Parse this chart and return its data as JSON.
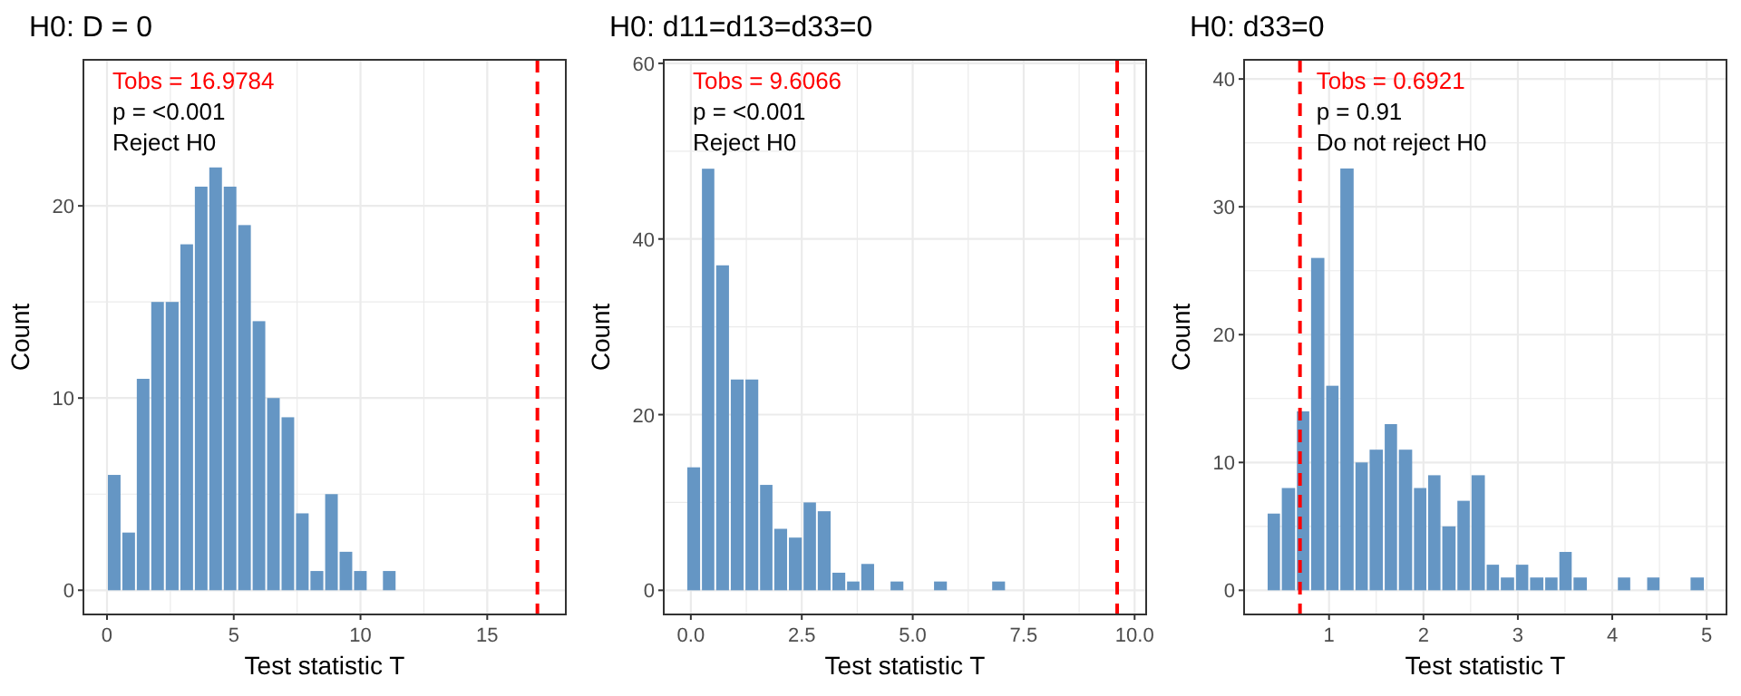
{
  "chart_data": [
    {
      "type": "histogram",
      "title": "H0: D = 0",
      "xlabel": "Test statistic T",
      "ylabel": "Count",
      "color": "#6596c4",
      "bins": [
        0,
        0.57,
        1.14,
        1.71,
        2.28,
        2.86,
        3.43,
        4.0,
        4.57,
        5.14,
        5.71,
        6.28,
        6.85,
        7.42,
        7.99,
        8.57,
        9.14,
        9.71,
        10.28,
        10.85,
        11.42
      ],
      "values": [
        6,
        3,
        11,
        15,
        15,
        18,
        21,
        22,
        21,
        19,
        14,
        10,
        9,
        4,
        1,
        5,
        2,
        1,
        0,
        1
      ],
      "xlim": [
        -0.93,
        18.1
      ],
      "xticks": [
        0,
        5,
        10,
        15
      ],
      "ylim": [
        -1.26,
        27.6
      ],
      "yticks": [
        0,
        10,
        20
      ],
      "grid": true,
      "ref_lines": [
        {
          "axis": "x",
          "value": 16.9784,
          "color": "#ff0000",
          "line_style": "dashed"
        }
      ],
      "annotations": [
        "Tobs = 16.9784",
        "p = <0.001",
        "Reject H0"
      ]
    },
    {
      "type": "histogram",
      "title": "H0: d11=d13=d33=0",
      "xlabel": "Test statistic T",
      "ylabel": "Count",
      "color": "#6596c4",
      "bins": [
        -0.1,
        0.23,
        0.55,
        0.88,
        1.21,
        1.54,
        1.86,
        2.19,
        2.52,
        2.84,
        3.17,
        3.5,
        3.82,
        4.15,
        4.48,
        4.81,
        5.46,
        5.79,
        6.77,
        7.1
      ],
      "values": [
        14,
        48,
        37,
        24,
        24,
        12,
        7,
        6,
        10,
        9,
        2,
        1,
        3,
        0,
        1,
        0,
        1,
        0,
        1
      ],
      "xlim": [
        -0.61,
        10.26
      ],
      "xticks": [
        {
          "value": 0,
          "label": "0.0"
        },
        2.5,
        {
          "value": 5,
          "label": "5.0"
        },
        7.5,
        {
          "value": 10,
          "label": "10.0"
        }
      ],
      "ylim": [
        -2.75,
        60.4
      ],
      "yticks": [
        0,
        20,
        40,
        60
      ],
      "grid": true,
      "ref_lines": [
        {
          "axis": "x",
          "value": 9.6066,
          "color": "#ff0000",
          "line_style": "dashed"
        }
      ],
      "annotations": [
        "Tobs = 9.6066",
        "p = <0.001",
        "Reject H0"
      ]
    },
    {
      "type": "histogram",
      "title": "H0: d33=0",
      "xlabel": "Test statistic T",
      "ylabel": "Count",
      "color": "#6596c4",
      "bins": [
        0.34,
        0.49,
        0.65,
        0.8,
        0.96,
        1.11,
        1.27,
        1.42,
        1.58,
        1.73,
        1.89,
        2.04,
        2.19,
        2.35,
        2.5,
        2.66,
        2.81,
        2.97,
        3.12,
        3.28,
        3.43,
        3.58,
        3.74,
        4.05,
        4.2,
        4.36,
        4.51,
        4.82,
        4.98
      ],
      "values": [
        6,
        8,
        14,
        26,
        16,
        33,
        10,
        11,
        13,
        11,
        8,
        9,
        5,
        7,
        9,
        2,
        1,
        2,
        1,
        1,
        3,
        1,
        0,
        1,
        0,
        1,
        0,
        1
      ],
      "xlim": [
        0.1,
        5.21
      ],
      "xticks": [
        1,
        2,
        3,
        4,
        5
      ],
      "ylim": [
        -1.89,
        41.5
      ],
      "yticks": [
        0,
        10,
        20,
        30,
        40
      ],
      "grid": true,
      "ref_lines": [
        {
          "axis": "x",
          "value": 0.6921,
          "color": "#ff0000",
          "line_style": "dashed"
        }
      ],
      "annotations": [
        "Tobs = 0.6921",
        "p = 0.91",
        "Do not reject H0"
      ]
    }
  ]
}
